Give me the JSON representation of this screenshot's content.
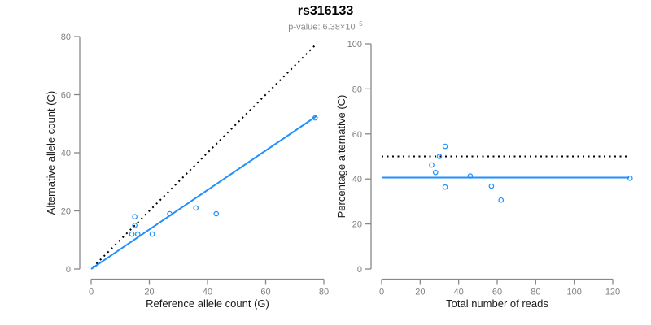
{
  "header": {
    "title": "rs316133",
    "pvalue_text": "p-value: 6.38×10",
    "pvalue_exponent": "−5"
  },
  "colors": {
    "accent_blue": "#1E90FF",
    "dotted_black": "#000000",
    "axis_gray": "#888888",
    "tick_label_gray": "#7f7f7f",
    "axis_title": "#1a1a1a",
    "subtitle_gray": "#8c8c8c"
  },
  "chart_data": [
    {
      "type": "scatter",
      "name": "allele-counts",
      "xlabel": "Reference allele count (G)",
      "ylabel": "Alternative allele count (C)",
      "xlim": [
        0,
        80
      ],
      "ylim": [
        0,
        80
      ],
      "xticks": [
        0,
        20,
        40,
        60,
        80
      ],
      "yticks": [
        0,
        20,
        40,
        60,
        80
      ],
      "grid": false,
      "point_color": "#1E90FF",
      "points": [
        {
          "x": 15,
          "y": 18
        },
        {
          "x": 15,
          "y": 15
        },
        {
          "x": 14,
          "y": 12
        },
        {
          "x": 16,
          "y": 12
        },
        {
          "x": 21,
          "y": 12
        },
        {
          "x": 27,
          "y": 19
        },
        {
          "x": 36,
          "y": 21
        },
        {
          "x": 43,
          "y": 19
        },
        {
          "x": 77,
          "y": 52
        }
      ],
      "lines": [
        {
          "name": "identity-line",
          "style": "dotted",
          "color": "#000000",
          "x1": 0.5,
          "y1": 0.5,
          "x2": 76.8,
          "y2": 76.8
        },
        {
          "name": "fit-line",
          "style": "solid",
          "color": "#1E90FF",
          "x1": 0,
          "y1": 0,
          "x2": 77.6,
          "y2": 52.7
        }
      ]
    },
    {
      "type": "scatter",
      "name": "percentage-vs-reads",
      "xlabel": "Total number of reads",
      "ylabel": "Percentage alternative (C)",
      "xlim": [
        0,
        128.5
      ],
      "ylim": [
        0,
        100
      ],
      "xticks": [
        0,
        20,
        40,
        60,
        80,
        100,
        120
      ],
      "yticks": [
        0,
        20,
        40,
        60,
        80,
        100
      ],
      "grid": false,
      "point_color": "#1E90FF",
      "points": [
        {
          "x": 33,
          "y": 54.5
        },
        {
          "x": 30,
          "y": 50
        },
        {
          "x": 26,
          "y": 46.2
        },
        {
          "x": 28,
          "y": 42.9
        },
        {
          "x": 33,
          "y": 36.4
        },
        {
          "x": 46,
          "y": 41.3
        },
        {
          "x": 57,
          "y": 36.8
        },
        {
          "x": 62,
          "y": 30.6
        },
        {
          "x": 129,
          "y": 40.3
        }
      ],
      "lines": [
        {
          "name": "expected-50pct-line",
          "style": "dotted",
          "color": "#000000",
          "x1": 0,
          "y1": 50,
          "x2": 128.5,
          "y2": 50
        },
        {
          "name": "mean-pct-line",
          "style": "solid",
          "color": "#1E90FF",
          "x1": 0,
          "y1": 40.6,
          "x2": 128.5,
          "y2": 40.6
        }
      ]
    }
  ]
}
